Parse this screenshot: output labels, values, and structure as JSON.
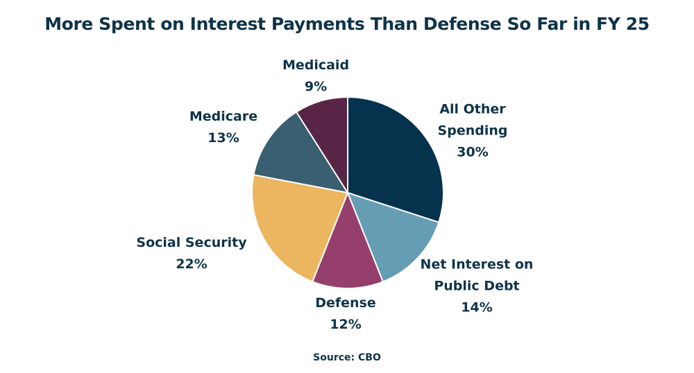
{
  "chart_data": {
    "type": "pie",
    "title": "More Spent on Interest Payments Than Defense So Far in FY 25",
    "slices": [
      {
        "name_lines": [
          "All Other",
          "Spending"
        ],
        "value": 30,
        "value_label": "30%",
        "color": "#05334d"
      },
      {
        "name_lines": [
          "Net Interest on",
          "Public Debt"
        ],
        "value": 14,
        "value_label": "14%",
        "color": "#659db4"
      },
      {
        "name_lines": [
          "Defense"
        ],
        "value": 12,
        "value_label": "12%",
        "color": "#963f6c"
      },
      {
        "name_lines": [
          "Social Security"
        ],
        "value": 22,
        "value_label": "22%",
        "color": "#ecb660"
      },
      {
        "name_lines": [
          "Medicare"
        ],
        "value": 13,
        "value_label": "13%",
        "color": "#395f70"
      },
      {
        "name_lines": [
          "Medicaid"
        ],
        "value": 9,
        "value_label": "9%",
        "color": "#592546"
      }
    ],
    "source": "Source: CBO"
  }
}
